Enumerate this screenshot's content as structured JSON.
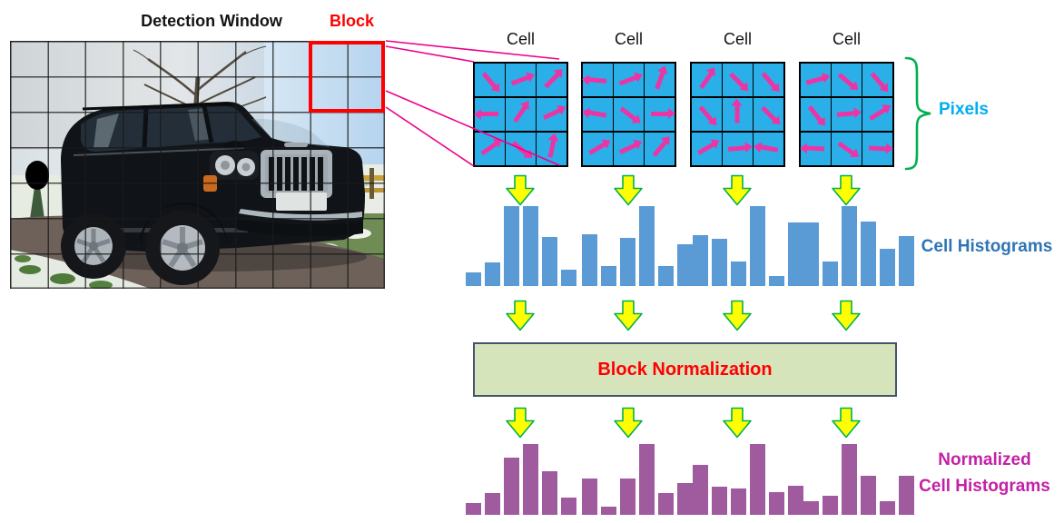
{
  "detection_window": {
    "title": "Detection Window",
    "block_label": "Block"
  },
  "cells": {
    "labels": [
      "Cell",
      "Cell",
      "Cell",
      "Cell"
    ],
    "pixels_label": "Pixels",
    "gradient_angles": [
      [
        50,
        -20,
        -45,
        180,
        -55,
        -25,
        -35,
        40,
        -78
      ],
      [
        185,
        -20,
        -70,
        190,
        38,
        0,
        -30,
        -25,
        -50
      ],
      [
        -55,
        45,
        50,
        50,
        -90,
        45,
        -30,
        -5,
        190
      ],
      [
        -15,
        40,
        50,
        52,
        -5,
        -32,
        183,
        35,
        3
      ]
    ]
  },
  "labels": {
    "cell_histograms": "Cell Histograms",
    "block_normalization": "Block Normalization",
    "normalized_line1": "Normalized",
    "normalized_line2": "Cell Histograms"
  },
  "colors": {
    "red": "#FF0000",
    "cell-fill": "#2BAFE8",
    "magenta": "#EC35A5",
    "connector": "#EC008C",
    "cyan-label": "#00AEEF",
    "blue-label": "#2E75B6",
    "magenta-label": "#C321A5",
    "hist-blue": "#5B9BD5",
    "hist-purple": "#A05B9F",
    "arrow-yellow": "#FFFF00",
    "arrow-green": "#00B050",
    "brace-green": "#00B050",
    "box-fill": "#D6E4BC",
    "box-border": "#44546A"
  },
  "chart_data": [
    {
      "id": "cell-histogram-1",
      "type": "bar",
      "group": "cell_histograms",
      "bins": 6,
      "values": [
        0.17,
        0.29,
        1.0,
        1.0,
        0.61,
        0.2
      ],
      "ylim": [
        0,
        1
      ],
      "grid": false,
      "axis_labels": false
    },
    {
      "id": "cell-histogram-2",
      "type": "bar",
      "group": "cell_histograms",
      "bins": 6,
      "values": [
        0.65,
        0.25,
        0.6,
        1.0,
        0.25,
        0.52
      ],
      "ylim": [
        0,
        1
      ],
      "grid": false,
      "axis_labels": false
    },
    {
      "id": "cell-histogram-3",
      "type": "bar",
      "group": "cell_histograms",
      "bins": 6,
      "values": [
        0.64,
        0.59,
        0.31,
        1.0,
        0.12,
        0.79
      ],
      "ylim": [
        0,
        1
      ],
      "grid": false,
      "axis_labels": false
    },
    {
      "id": "cell-histogram-4",
      "type": "bar",
      "group": "cell_histograms",
      "bins": 6,
      "values": [
        0.8,
        0.31,
        1.0,
        0.81,
        0.47,
        0.62
      ],
      "ylim": [
        0,
        1
      ],
      "grid": false,
      "axis_labels": false
    },
    {
      "id": "normalized-histogram-1",
      "type": "bar",
      "group": "normalized_cell_histograms",
      "bins": 6,
      "values": [
        0.17,
        0.31,
        0.81,
        1.0,
        0.62,
        0.24
      ],
      "ylim": [
        0,
        1
      ],
      "grid": false,
      "axis_labels": false
    },
    {
      "id": "normalized-histogram-2",
      "type": "bar",
      "group": "normalized_cell_histograms",
      "bins": 6,
      "values": [
        0.51,
        0.11,
        0.51,
        1.0,
        0.31,
        0.45
      ],
      "ylim": [
        0,
        1
      ],
      "grid": false,
      "axis_labels": false
    },
    {
      "id": "normalized-histogram-3",
      "type": "bar",
      "group": "normalized_cell_histograms",
      "bins": 6,
      "values": [
        0.7,
        0.4,
        0.37,
        1.0,
        0.32,
        0.41
      ],
      "ylim": [
        0,
        1
      ],
      "grid": false,
      "axis_labels": false
    },
    {
      "id": "normalized-histogram-4",
      "type": "bar",
      "group": "normalized_cell_histograms",
      "bins": 6,
      "values": [
        0.19,
        0.27,
        1.0,
        0.55,
        0.19,
        0.55
      ],
      "ylim": [
        0,
        1
      ],
      "grid": false,
      "axis_labels": false
    }
  ]
}
